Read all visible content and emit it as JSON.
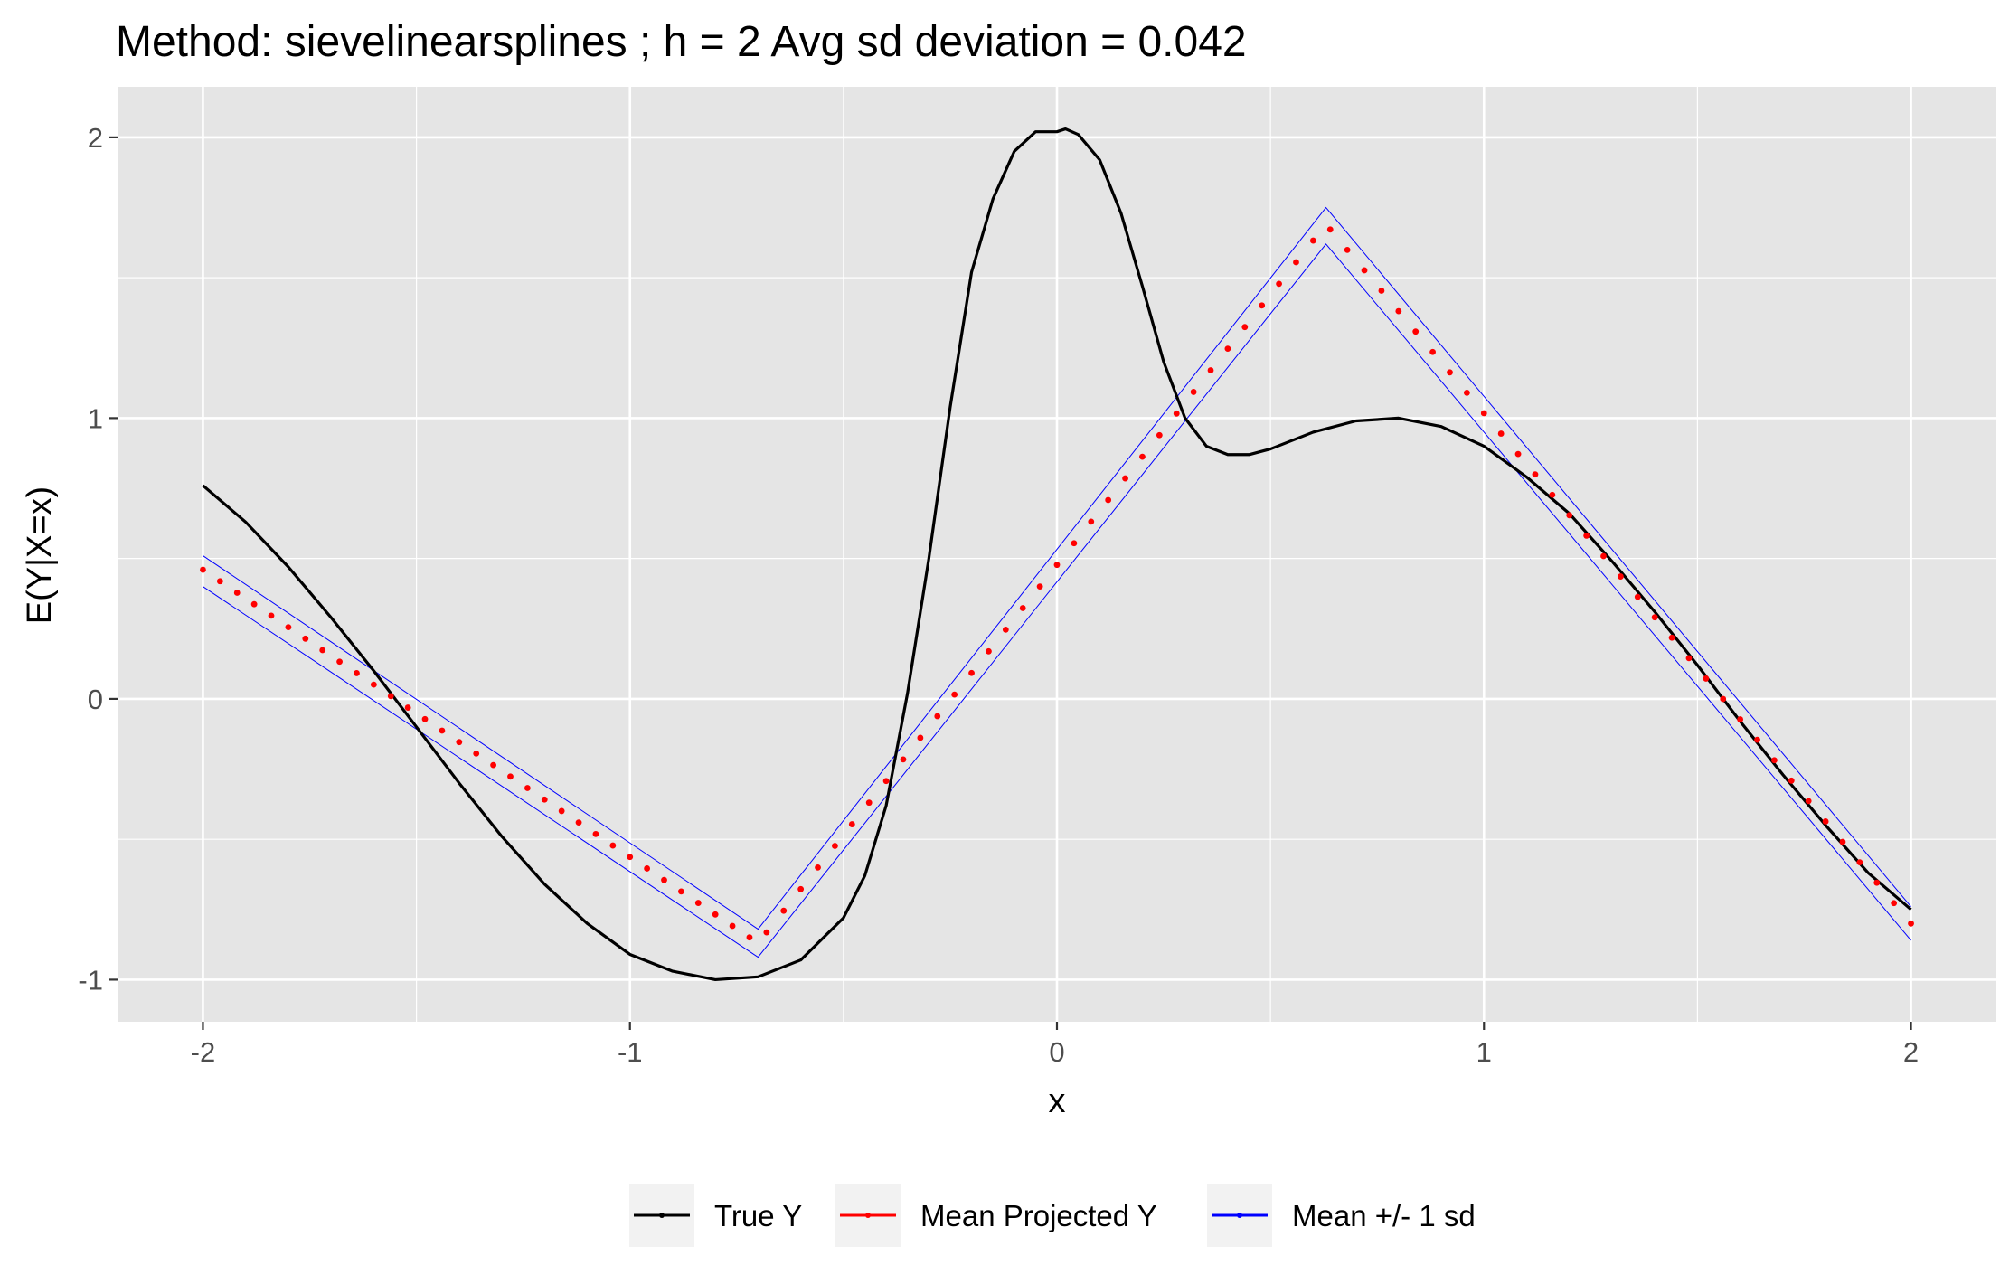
{
  "chart_data": {
    "type": "line",
    "title": "Method: sievelinearsplines ; h = 2 Avg sd deviation = 0.042",
    "xlabel": "x",
    "ylabel": "E(Y|X=x)",
    "xlim": [
      -2.2,
      2.2
    ],
    "ylim": [
      -1.15,
      2.18
    ],
    "x_ticks": [
      -2,
      -1,
      0,
      1,
      2
    ],
    "x_tick_labels": [
      "-2",
      "-1",
      "0",
      "1",
      "2"
    ],
    "y_ticks": [
      -1,
      0,
      1,
      2
    ],
    "y_tick_labels": [
      "-1",
      "0",
      "1",
      "2"
    ],
    "grid": true,
    "legend_position": "bottom",
    "colors": {
      "panel_background": "#e5e5e5",
      "grid": "#ffffff",
      "true_y": "#000000",
      "mean_projected": "#ff0000",
      "band": "#0000ff"
    },
    "series": [
      {
        "name": "True Y",
        "style": "line",
        "color": "#000000",
        "x": [
          -2.0,
          -1.9,
          -1.8,
          -1.7,
          -1.6,
          -1.5,
          -1.4,
          -1.3,
          -1.2,
          -1.1,
          -1.0,
          -0.9,
          -0.8,
          -0.7,
          -0.6,
          -0.5,
          -0.45,
          -0.4,
          -0.35,
          -0.3,
          -0.25,
          -0.2,
          -0.15,
          -0.1,
          -0.05,
          0.0,
          0.02,
          0.05,
          0.1,
          0.15,
          0.2,
          0.25,
          0.3,
          0.35,
          0.4,
          0.45,
          0.5,
          0.6,
          0.7,
          0.8,
          0.9,
          1.0,
          1.1,
          1.2,
          1.3,
          1.4,
          1.5,
          1.6,
          1.7,
          1.8,
          1.9,
          2.0
        ],
        "y": [
          0.76,
          0.63,
          0.47,
          0.29,
          0.1,
          -0.1,
          -0.3,
          -0.49,
          -0.66,
          -0.8,
          -0.91,
          -0.97,
          -1.0,
          -0.99,
          -0.93,
          -0.78,
          -0.63,
          -0.38,
          0.02,
          0.5,
          1.04,
          1.52,
          1.78,
          1.95,
          2.02,
          2.02,
          2.03,
          2.01,
          1.92,
          1.73,
          1.47,
          1.2,
          1.0,
          0.9,
          0.87,
          0.87,
          0.89,
          0.95,
          0.99,
          1.0,
          0.97,
          0.9,
          0.79,
          0.66,
          0.49,
          0.31,
          0.12,
          -0.08,
          -0.27,
          -0.45,
          -0.62,
          -0.75
        ]
      },
      {
        "name": "Mean Projected Y",
        "style": "points",
        "color": "#ff0000",
        "x": [
          -2.0,
          -0.7,
          0.63,
          2.0
        ],
        "y": [
          0.46,
          -0.87,
          1.69,
          -0.8
        ]
      },
      {
        "name": "Mean +/- 1 sd",
        "style": "band",
        "color": "#0000ff",
        "x": [
          -2.0,
          -0.7,
          0.63,
          2.0
        ],
        "upper": [
          0.51,
          -0.82,
          1.75,
          -0.74
        ],
        "lower": [
          0.4,
          -0.92,
          1.62,
          -0.86
        ]
      }
    ]
  }
}
